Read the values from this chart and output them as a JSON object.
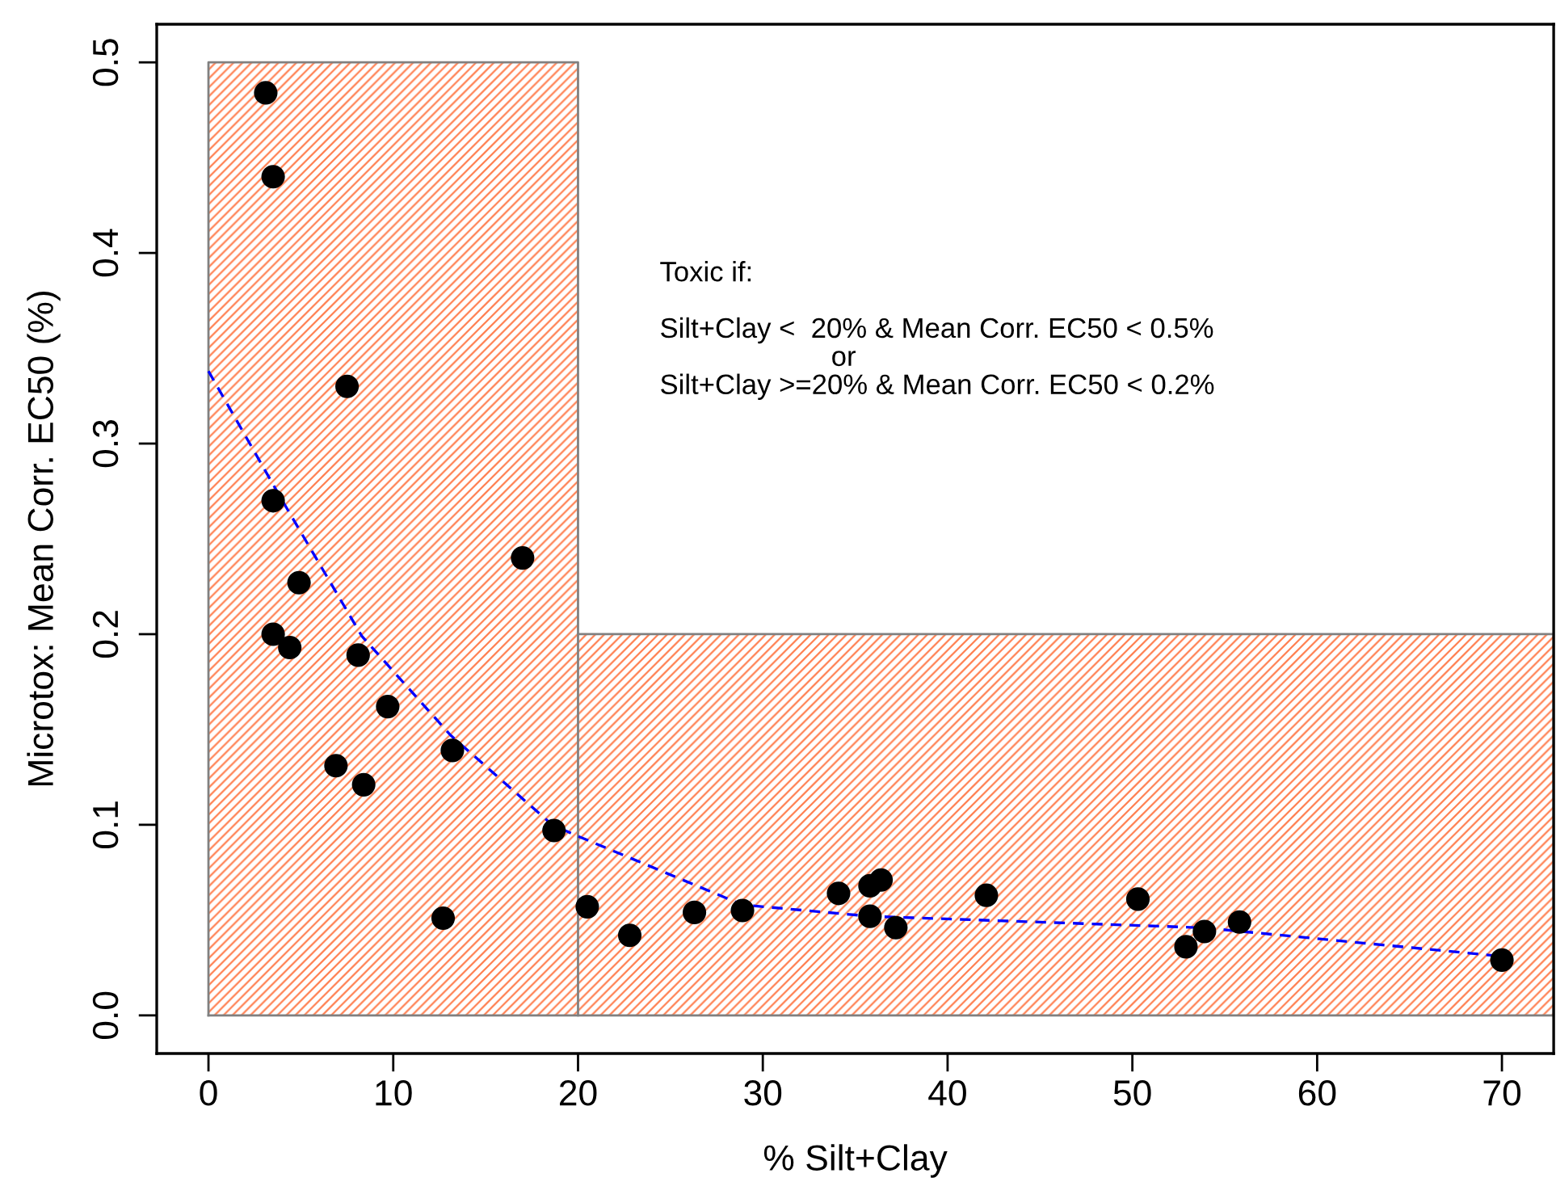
{
  "chart_data": {
    "type": "scatter",
    "xlabel": "% Silt+Clay",
    "ylabel": "Microtox: Mean Corr. EC50 (%)",
    "xlim": [
      -2.8,
      72.8
    ],
    "ylim": [
      -0.02,
      0.52
    ],
    "xticks": [
      0,
      10,
      20,
      30,
      40,
      50,
      60,
      70
    ],
    "yticks": [
      {
        "value": 0,
        "label": "0.0"
      },
      0.1,
      0.2,
      0.3,
      0.4,
      0.5
    ],
    "legend": false,
    "series": [
      {
        "type": "area",
        "color": "#ff7f50",
        "x": [
          0,
          20,
          20,
          72.8
        ],
        "values": [
          0.5,
          0.5,
          0.2,
          0.2
        ]
      },
      {
        "type": "line",
        "color": "#0000ff",
        "line_style": "dashed",
        "marker": "none",
        "x": [
          0,
          4,
          8.3,
          13.1,
          18.6,
          20,
          28.9,
          35.8,
          53.8,
          70
        ],
        "values": [
          0.338,
          0.27,
          0.199,
          0.147,
          0.1,
          0.094,
          0.058,
          0.052,
          0.046,
          0.031
        ]
      },
      {
        "color": "#000000",
        "marker": "circle",
        "x": [
          3.1,
          3.5,
          7.5,
          3.5,
          17.0,
          4.9,
          3.5,
          4.4,
          8.1,
          9.7,
          13.2,
          6.9,
          8.4,
          18.7,
          12.7,
          20.5,
          22.8,
          26.3,
          28.9,
          34.1,
          35.8,
          36.4,
          35.8,
          37.2,
          42.1,
          50.3,
          52.9,
          53.9,
          55.8,
          70.0
        ],
        "values": [
          0.484,
          0.44,
          0.33,
          0.27,
          0.24,
          0.227,
          0.2,
          0.193,
          0.189,
          0.162,
          0.139,
          0.131,
          0.121,
          0.097,
          0.051,
          0.057,
          0.042,
          0.054,
          0.055,
          0.064,
          0.068,
          0.071,
          0.052,
          0.046,
          0.063,
          0.061,
          0.036,
          0.044,
          0.049,
          0.029
        ]
      }
    ],
    "annotations": [
      "Toxic if:\n\nSilt+Clay <  20% & Mean Corr. EC50 < 0.5%\n                      or\nSilt+Clay >=20% & Mean Corr. EC50 < 0.2%"
    ]
  }
}
